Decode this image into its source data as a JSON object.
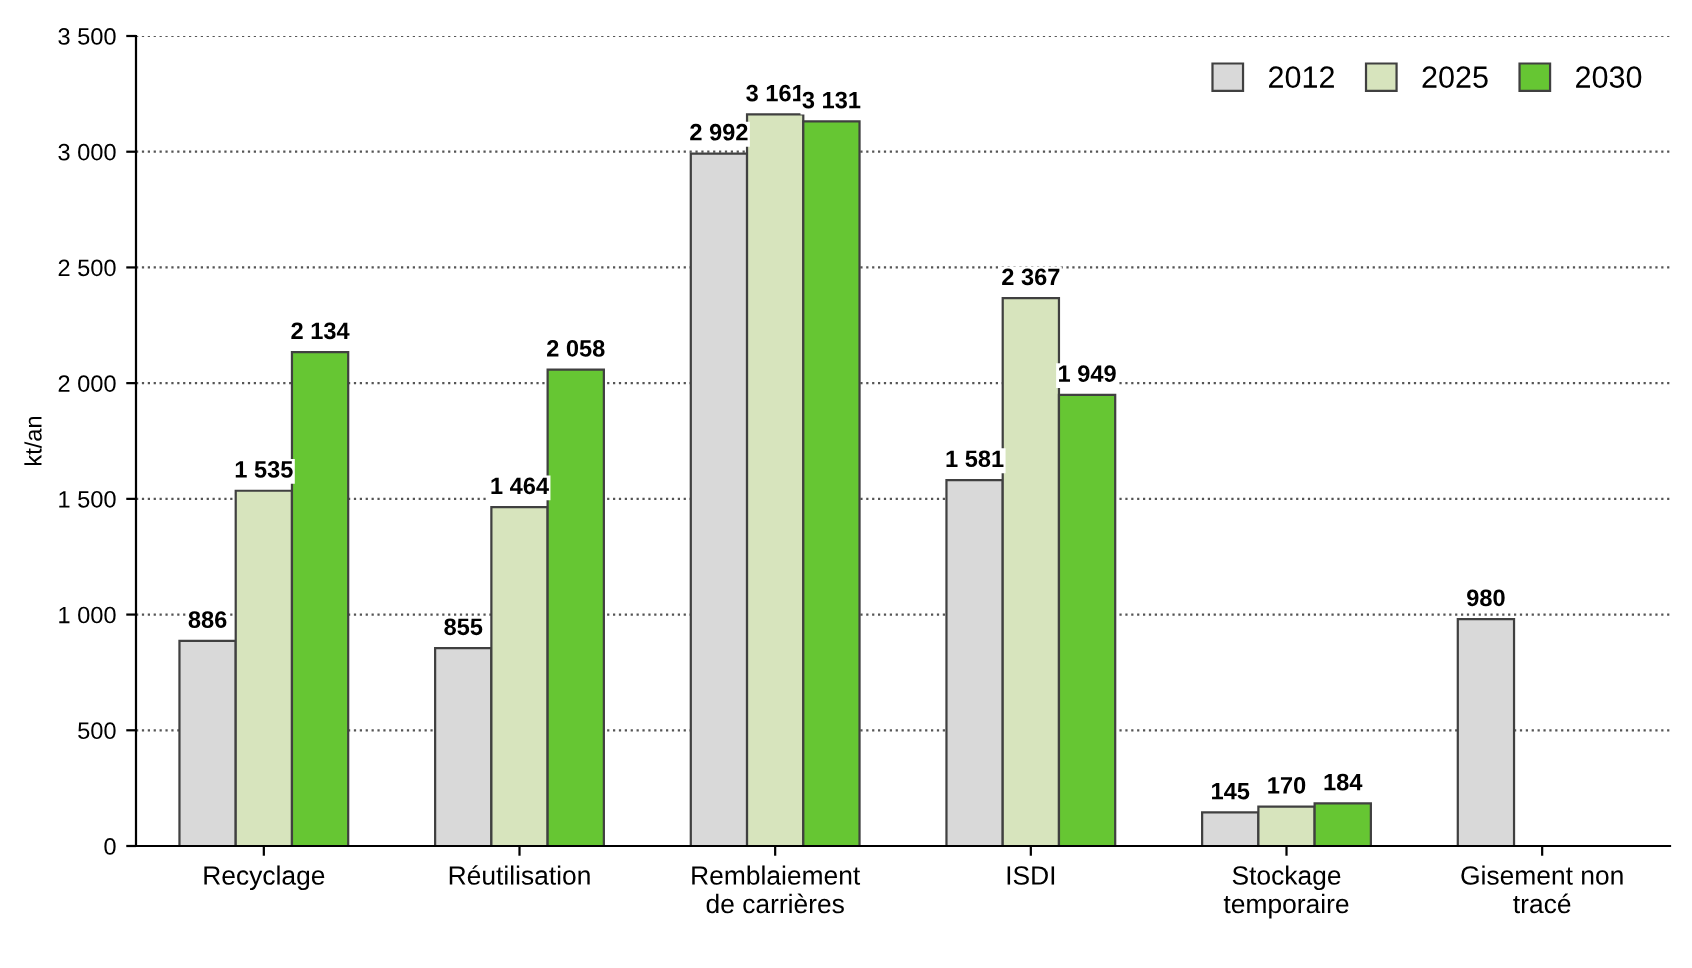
{
  "chart_data": {
    "type": "bar",
    "ylabel": "kt/an",
    "categories": [
      "Recyclage",
      "Réutilisation",
      "Remblaiement\nde carrières",
      "ISDI",
      "Stockage\ntemporaire",
      "Gisement non\ntracé"
    ],
    "series": [
      {
        "name": "2012",
        "color": "#d9d9d9",
        "values": [
          886,
          855,
          2992,
          1581,
          145,
          980
        ],
        "value_labels": [
          "886",
          "855",
          "2 992",
          "1 581",
          "145",
          "980"
        ]
      },
      {
        "name": "2025",
        "color": "#d7e4bd",
        "values": [
          1535,
          1464,
          3161,
          2367,
          170,
          null
        ],
        "value_labels": [
          "1 535",
          "1 464",
          "3 161",
          "2 367",
          "170",
          null
        ]
      },
      {
        "name": "2030",
        "color": "#66c633",
        "values": [
          2134,
          2058,
          3131,
          1949,
          184,
          null
        ],
        "value_labels": [
          "2 134",
          "2 058",
          "3 131",
          "1 949",
          "184",
          null
        ]
      }
    ],
    "ylim": [
      0,
      3500
    ],
    "yticks": [
      0,
      500,
      {
        "value": 1000,
        "label": "1 000"
      },
      {
        "value": 1500,
        "label": "1 500"
      },
      {
        "value": 2000,
        "label": "2 000"
      },
      {
        "value": 2500,
        "label": "2 500"
      },
      {
        "value": 3000,
        "label": "3 000"
      },
      {
        "value": 3500,
        "label": "3 500"
      }
    ],
    "grid": "y",
    "legend": "top right"
  }
}
